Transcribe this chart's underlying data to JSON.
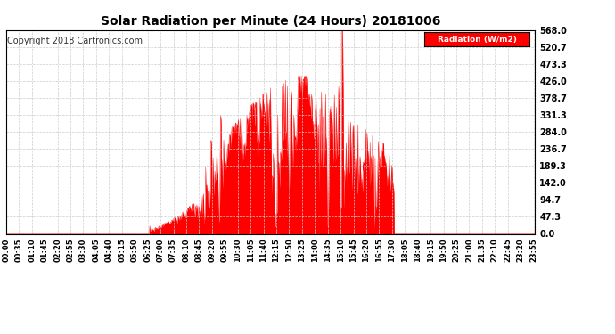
{
  "title": "Solar Radiation per Minute (24 Hours) 20181006",
  "copyright_text": "Copyright 2018 Cartronics.com",
  "legend_label": "Radiation (W/m2)",
  "fill_color": "#FF0000",
  "line_color": "#FF0000",
  "background_color": "#FFFFFF",
  "grid_color": "#CCCCCC",
  "dashed_line_color": "#FF0000",
  "ylim": [
    0.0,
    568.0
  ],
  "yticks": [
    0.0,
    47.3,
    94.7,
    142.0,
    189.3,
    236.7,
    284.0,
    331.3,
    378.7,
    426.0,
    473.3,
    520.7,
    568.0
  ],
  "legend_bg": "#FF0000",
  "legend_text_color": "#FFFFFF",
  "title_fontsize": 10,
  "copyright_fontsize": 7,
  "tick_fontsize": 6,
  "ytick_fontsize": 7
}
